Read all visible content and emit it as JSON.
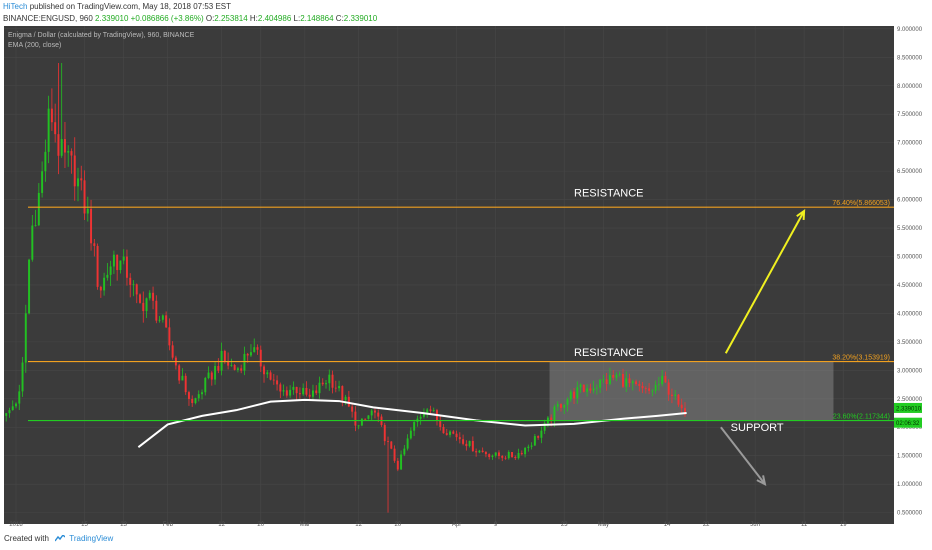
{
  "header": {
    "author": "HiTech",
    "published": "published on TradingView.com, May 18, 2018 07:53 EST",
    "symbol": "BINANCE:ENGUSD, 960",
    "last": "2.339010",
    "change": "+0.086866 (+3.86%)",
    "open_label": "O:",
    "open": "2.253814",
    "high_label": "H:",
    "high": "2.404986",
    "low_label": "L:",
    "low": "2.148864",
    "close_label": "C:",
    "close": "2.339010"
  },
  "chart_title": "Enigma / Dollar (calculated by TradingView), 960, BINANCE",
  "indicator_label": "EMA (200, close)",
  "footer": {
    "created_with": "Created with",
    "brand": "TradingView"
  },
  "colors": {
    "background": "#3b3b3b",
    "bull": "#22c022",
    "bear": "#ee3333",
    "resistance": "#f0a020",
    "support": "#22cc22",
    "ema": "#ffffff",
    "bull_arrow": "#f0f020",
    "bear_arrow": "#9a9a9a",
    "range_box": "#8a8a8a"
  },
  "chart_data": {
    "type": "candlestick",
    "symbol": "BINANCE:ENGUSD",
    "interval": "960",
    "y_ticks": [
      "9.000000",
      "8.500000",
      "8.000000",
      "7.500000",
      "7.000000",
      "6.500000",
      "6.000000",
      "5.500000",
      "5.000000",
      "4.500000",
      "4.000000",
      "3.500000",
      "3.000000",
      "2.500000",
      "2.000000",
      "1.500000",
      "1.000000",
      "0.500000"
    ],
    "ylim": [
      0.3,
      9.05
    ],
    "x_ticks": [
      "2018",
      "15",
      "23",
      "Feb",
      "12",
      "20",
      "Mar",
      "12",
      "20",
      "Apr",
      "9",
      "23",
      "May",
      "14",
      "22",
      "Jun",
      "11",
      "19",
      "Jul"
    ],
    "x_tick_dates": [
      "2018-01-01",
      "2018-01-15",
      "2018-01-23",
      "2018-02-01",
      "2018-02-12",
      "2018-02-20",
      "2018-03-01",
      "2018-03-12",
      "2018-03-20",
      "2018-04-01",
      "2018-04-09",
      "2018-04-23",
      "2018-05-01",
      "2018-05-14",
      "2018-05-22",
      "2018-06-01",
      "2018-06-11",
      "2018-06-19",
      "2018-07-01"
    ],
    "xlim": [
      "2018-01-01",
      "2018-07-01"
    ],
    "price_path": [
      [
        "2017-12-30",
        2.2
      ],
      [
        "2018-01-02",
        2.6
      ],
      [
        "2018-01-04",
        5.4
      ],
      [
        "2018-01-06",
        6.2
      ],
      [
        "2018-01-08",
        7.6
      ],
      [
        "2018-01-10",
        6.8
      ],
      [
        "2018-01-13",
        6.5
      ],
      [
        "2018-01-16",
        5.6
      ],
      [
        "2018-01-18",
        4.4
      ],
      [
        "2018-01-21",
        5.0
      ],
      [
        "2018-01-24",
        4.7
      ],
      [
        "2018-01-26",
        4.1
      ],
      [
        "2018-01-28",
        4.3
      ],
      [
        "2018-01-31",
        3.8
      ],
      [
        "2018-02-03",
        3.0
      ],
      [
        "2018-02-06",
        2.4
      ],
      [
        "2018-02-09",
        2.8
      ],
      [
        "2018-02-12",
        3.2
      ],
      [
        "2018-02-15",
        3.0
      ],
      [
        "2018-02-18",
        3.4
      ],
      [
        "2018-02-21",
        3.0
      ],
      [
        "2018-02-24",
        2.6
      ],
      [
        "2018-02-27",
        2.7
      ],
      [
        "2018-03-02",
        2.5
      ],
      [
        "2018-03-06",
        2.9
      ],
      [
        "2018-03-09",
        2.5
      ],
      [
        "2018-03-12",
        2.0
      ],
      [
        "2018-03-15",
        2.3
      ],
      [
        "2018-03-18",
        1.7
      ],
      [
        "2018-03-20",
        1.3
      ],
      [
        "2018-03-23",
        2.0
      ],
      [
        "2018-03-26",
        2.4
      ],
      [
        "2018-03-29",
        2.0
      ],
      [
        "2018-04-02",
        1.8
      ],
      [
        "2018-04-05",
        1.6
      ],
      [
        "2018-04-09",
        1.5
      ],
      [
        "2018-04-13",
        1.5
      ],
      [
        "2018-04-16",
        1.7
      ],
      [
        "2018-04-19",
        2.0
      ],
      [
        "2018-04-22",
        2.4
      ],
      [
        "2018-04-25",
        2.6
      ],
      [
        "2018-04-28",
        2.7
      ],
      [
        "2018-05-01",
        2.8
      ],
      [
        "2018-05-04",
        2.9
      ],
      [
        "2018-05-07",
        2.7
      ],
      [
        "2018-05-10",
        2.6
      ],
      [
        "2018-05-13",
        2.8
      ],
      [
        "2018-05-15",
        2.6
      ],
      [
        "2018-05-17",
        2.25
      ],
      [
        "2018-05-18",
        2.34
      ]
    ],
    "ema200": [
      [
        "2018-01-26",
        1.65
      ],
      [
        "2018-02-01",
        2.05
      ],
      [
        "2018-02-08",
        2.2
      ],
      [
        "2018-02-15",
        2.3
      ],
      [
        "2018-02-22",
        2.45
      ],
      [
        "2018-03-01",
        2.48
      ],
      [
        "2018-03-08",
        2.46
      ],
      [
        "2018-03-15",
        2.35
      ],
      [
        "2018-03-25",
        2.25
      ],
      [
        "2018-04-05",
        2.12
      ],
      [
        "2018-04-15",
        2.03
      ],
      [
        "2018-04-25",
        2.06
      ],
      [
        "2018-05-05",
        2.15
      ],
      [
        "2018-05-12",
        2.2
      ],
      [
        "2018-05-18",
        2.25
      ]
    ],
    "min_wick": {
      "date": "2018-03-18",
      "price": 0.5
    },
    "max_wick": {
      "date": "2018-01-10",
      "price": 8.4
    },
    "fib_levels": [
      {
        "label": "76.40%(5.866053)",
        "price": 5.866053,
        "color": "#f0a020"
      },
      {
        "label": "38.20%(3.153919)",
        "price": 3.153919,
        "color": "#f0a020"
      },
      {
        "label": "23.60%(2.117344)",
        "price": 2.117344,
        "color": "#22cc22"
      }
    ],
    "price_tags": [
      {
        "label": "2.339010",
        "price": 2.33901
      },
      {
        "label": "02:06:32",
        "price": 2.08
      }
    ],
    "range_box": {
      "from": "2018-04-20",
      "to": "2018-06-17",
      "low": 2.117344,
      "high": 3.153919
    },
    "annotations": [
      {
        "text": "RESISTANCE",
        "date": "2018-04-25",
        "price": 6.05
      },
      {
        "text": "RESISTANCE",
        "date": "2018-04-25",
        "price": 3.25
      },
      {
        "text": "SUPPORT",
        "date": "2018-05-27",
        "price": 1.93
      }
    ],
    "arrows": [
      {
        "from_date": "2018-05-26",
        "from_price": 3.3,
        "to_date": "2018-06-11",
        "to_price": 5.8,
        "color": "#f0f020"
      },
      {
        "from_date": "2018-05-25",
        "from_price": 2.0,
        "to_date": "2018-06-03",
        "to_price": 1.0,
        "color": "#9a9a9a"
      }
    ]
  }
}
